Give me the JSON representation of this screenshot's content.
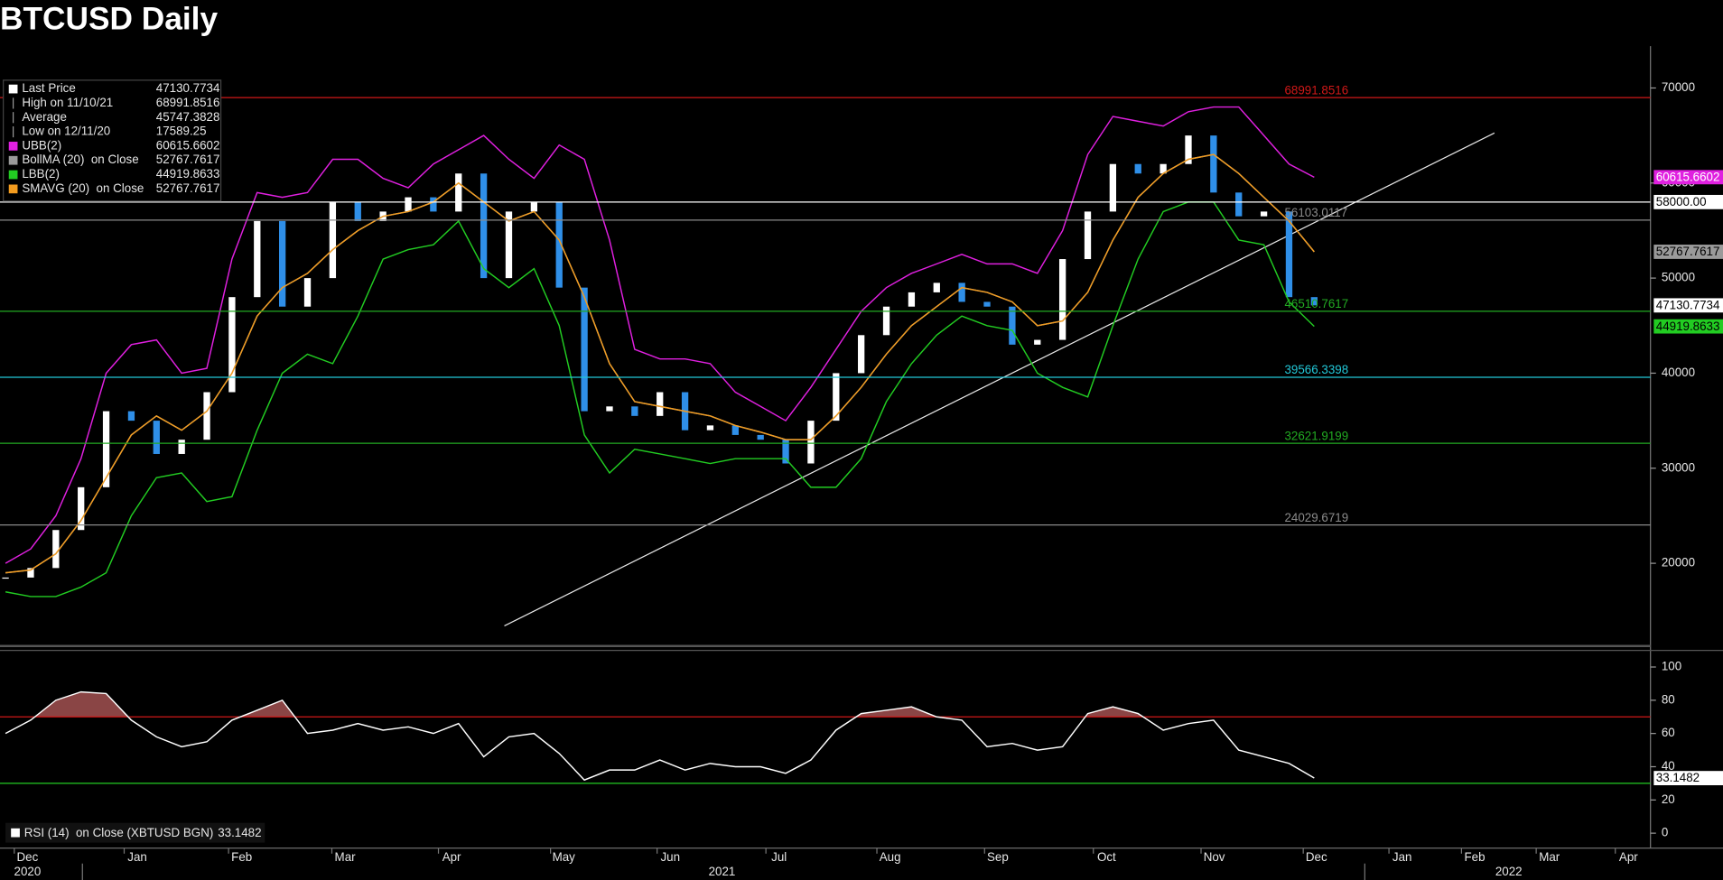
{
  "chart_data": [
    {
      "type": "line",
      "title": "BTCUSD Daily",
      "ylim": [
        11300,
        74400
      ],
      "yticks": [
        20000,
        30000,
        40000,
        50000,
        60000,
        70000
      ],
      "grid": false,
      "series": [
        {
          "name": "Last Price",
          "style": "candle",
          "color": "#ffffff",
          "down_color": "#2f8fe8",
          "tag": true,
          "values": [
            18500,
            19500,
            23500,
            28000,
            36000,
            35000,
            31500,
            33000,
            38000,
            48000,
            56000,
            47000,
            50000,
            58000,
            56000,
            57000,
            58500,
            57000,
            61000,
            50000,
            57000,
            58000,
            49000,
            36000,
            36500,
            35500,
            38000,
            34000,
            34500,
            33500,
            33000,
            30500,
            35000,
            40000,
            44000,
            47000,
            48500,
            49500,
            47500,
            47000,
            43000,
            43500,
            52000,
            57000,
            62000,
            61000,
            62000,
            65000,
            59000,
            56500,
            57000,
            48000,
            47130.7734
          ]
        },
        {
          "name": "UBB(2)",
          "style": "line",
          "color": "#e020e0",
          "tag": true,
          "values": [
            20000,
            21500,
            25000,
            31000,
            40000,
            43000,
            43500,
            40000,
            40500,
            52000,
            59000,
            58500,
            59000,
            62500,
            62500,
            60500,
            59500,
            62000,
            63500,
            65000,
            62500,
            60500,
            64000,
            62500,
            54000,
            42500,
            41500,
            41500,
            41000,
            38000,
            36500,
            35000,
            38500,
            42500,
            46500,
            49000,
            50500,
            51500,
            52500,
            51500,
            51500,
            50500,
            55000,
            63000,
            67000,
            66500,
            66000,
            67500,
            68000,
            68000,
            65000,
            62000,
            60615.6602
          ]
        },
        {
          "name": "BollMA (20)  on Close",
          "style": "line",
          "color": "#9a9a9a",
          "tag": true,
          "values": [
            19000,
            19300,
            21000,
            24500,
            29000,
            33500,
            35500,
            34000,
            36000,
            40000,
            46000,
            49000,
            50500,
            53000,
            55000,
            56500,
            57000,
            58000,
            60000,
            58000,
            56000,
            57000,
            54000,
            48000,
            41000,
            37000,
            36500,
            36000,
            35500,
            34500,
            33800,
            33000,
            33000,
            35500,
            38500,
            42000,
            45000,
            47000,
            49000,
            48500,
            47500,
            45000,
            45500,
            48500,
            54000,
            58500,
            61000,
            62500,
            63000,
            61000,
            58500,
            56000,
            52767.7617
          ]
        },
        {
          "name": "LBB(2)",
          "style": "line",
          "color": "#22cc22",
          "tag": true,
          "values": [
            17000,
            16500,
            16500,
            17500,
            19000,
            25000,
            29000,
            29500,
            26500,
            27000,
            34000,
            40000,
            42000,
            41000,
            46000,
            52000,
            53000,
            53500,
            56000,
            51000,
            49000,
            51000,
            45000,
            33500,
            29500,
            32000,
            31500,
            31000,
            30500,
            31000,
            31000,
            31000,
            28000,
            28000,
            31000,
            37000,
            41000,
            44000,
            46000,
            45000,
            44500,
            40000,
            38500,
            37500,
            45000,
            52000,
            57000,
            58000,
            58000,
            54000,
            53500,
            47500,
            44919.8633
          ]
        },
        {
          "name": "SMAVG (20)  on Close",
          "style": "line",
          "color": "#f39c1f",
          "tag": false,
          "values": [
            19000,
            19300,
            21000,
            24500,
            29000,
            33500,
            35500,
            34000,
            36000,
            40000,
            46000,
            49000,
            50500,
            53000,
            55000,
            56500,
            57000,
            58000,
            60000,
            58000,
            56000,
            57000,
            54000,
            48000,
            41000,
            37000,
            36500,
            36000,
            35500,
            34500,
            33800,
            33000,
            33000,
            35500,
            38500,
            42000,
            45000,
            47000,
            49000,
            48500,
            47500,
            45000,
            45500,
            48500,
            54000,
            58500,
            61000,
            62500,
            63000,
            61000,
            58500,
            56000,
            52767.7617
          ]
        }
      ],
      "stats": [
        {
          "name": "High on 11/10/21",
          "value": 68991.8516
        },
        {
          "name": "Average",
          "value": 45747.3828
        },
        {
          "name": "Low on 12/11/20",
          "value": 17589.25
        }
      ],
      "levels": [
        {
          "value": 68991.8516,
          "color": "#d01818"
        },
        {
          "value": 58000,
          "label": "58000.00",
          "color": "#ffffff",
          "axis_tag": true
        },
        {
          "value": 56103.0117,
          "color": "#8a8a8a"
        },
        {
          "value": 46510.7617,
          "color": "#22aa22"
        },
        {
          "value": 39566.3398,
          "color": "#22c8d8"
        },
        {
          "value": 32621.9199,
          "color": "#22aa22"
        },
        {
          "value": 24029.6719,
          "color": "#8a8a8a"
        }
      ],
      "trendline": {
        "values": [
          13418,
          65266
        ],
        "color": "#e8e8e8"
      }
    },
    {
      "type": "line",
      "ylim": [
        -9,
        110
      ],
      "yticks": [
        0,
        20,
        40,
        60,
        80,
        100
      ],
      "grid": false,
      "series": [
        {
          "name": "RSI (14)  on Close (XBTUSD BGN)",
          "style": "line",
          "color": "#ffffff",
          "tag": true,
          "values": [
            60,
            68,
            80,
            85,
            84,
            68,
            58,
            52,
            55,
            68,
            74,
            80,
            60,
            62,
            66,
            62,
            64,
            60,
            66,
            46,
            58,
            60,
            48,
            32,
            38,
            38,
            44,
            38,
            42,
            40,
            40,
            36,
            44,
            62,
            72,
            74,
            76,
            70,
            68,
            52,
            54,
            50,
            52,
            72,
            76,
            72,
            62,
            66,
            68,
            50,
            46,
            42,
            33.1482
          ]
        }
      ],
      "levels": [
        {
          "value": 70,
          "color": "#d01818",
          "fill": "#8a4545"
        },
        {
          "value": 30,
          "color": "#22cc22"
        }
      ],
      "x_labels": [
        "Dec",
        "Jan",
        "Feb",
        "Mar",
        "Apr",
        "May",
        "Jun",
        "Jul",
        "Aug",
        "Sep",
        "Oct",
        "Nov",
        "Dec",
        "Jan",
        "Feb",
        "Mar",
        "Apr"
      ],
      "year_labels": [
        "2020",
        "2021",
        "2022"
      ]
    }
  ]
}
